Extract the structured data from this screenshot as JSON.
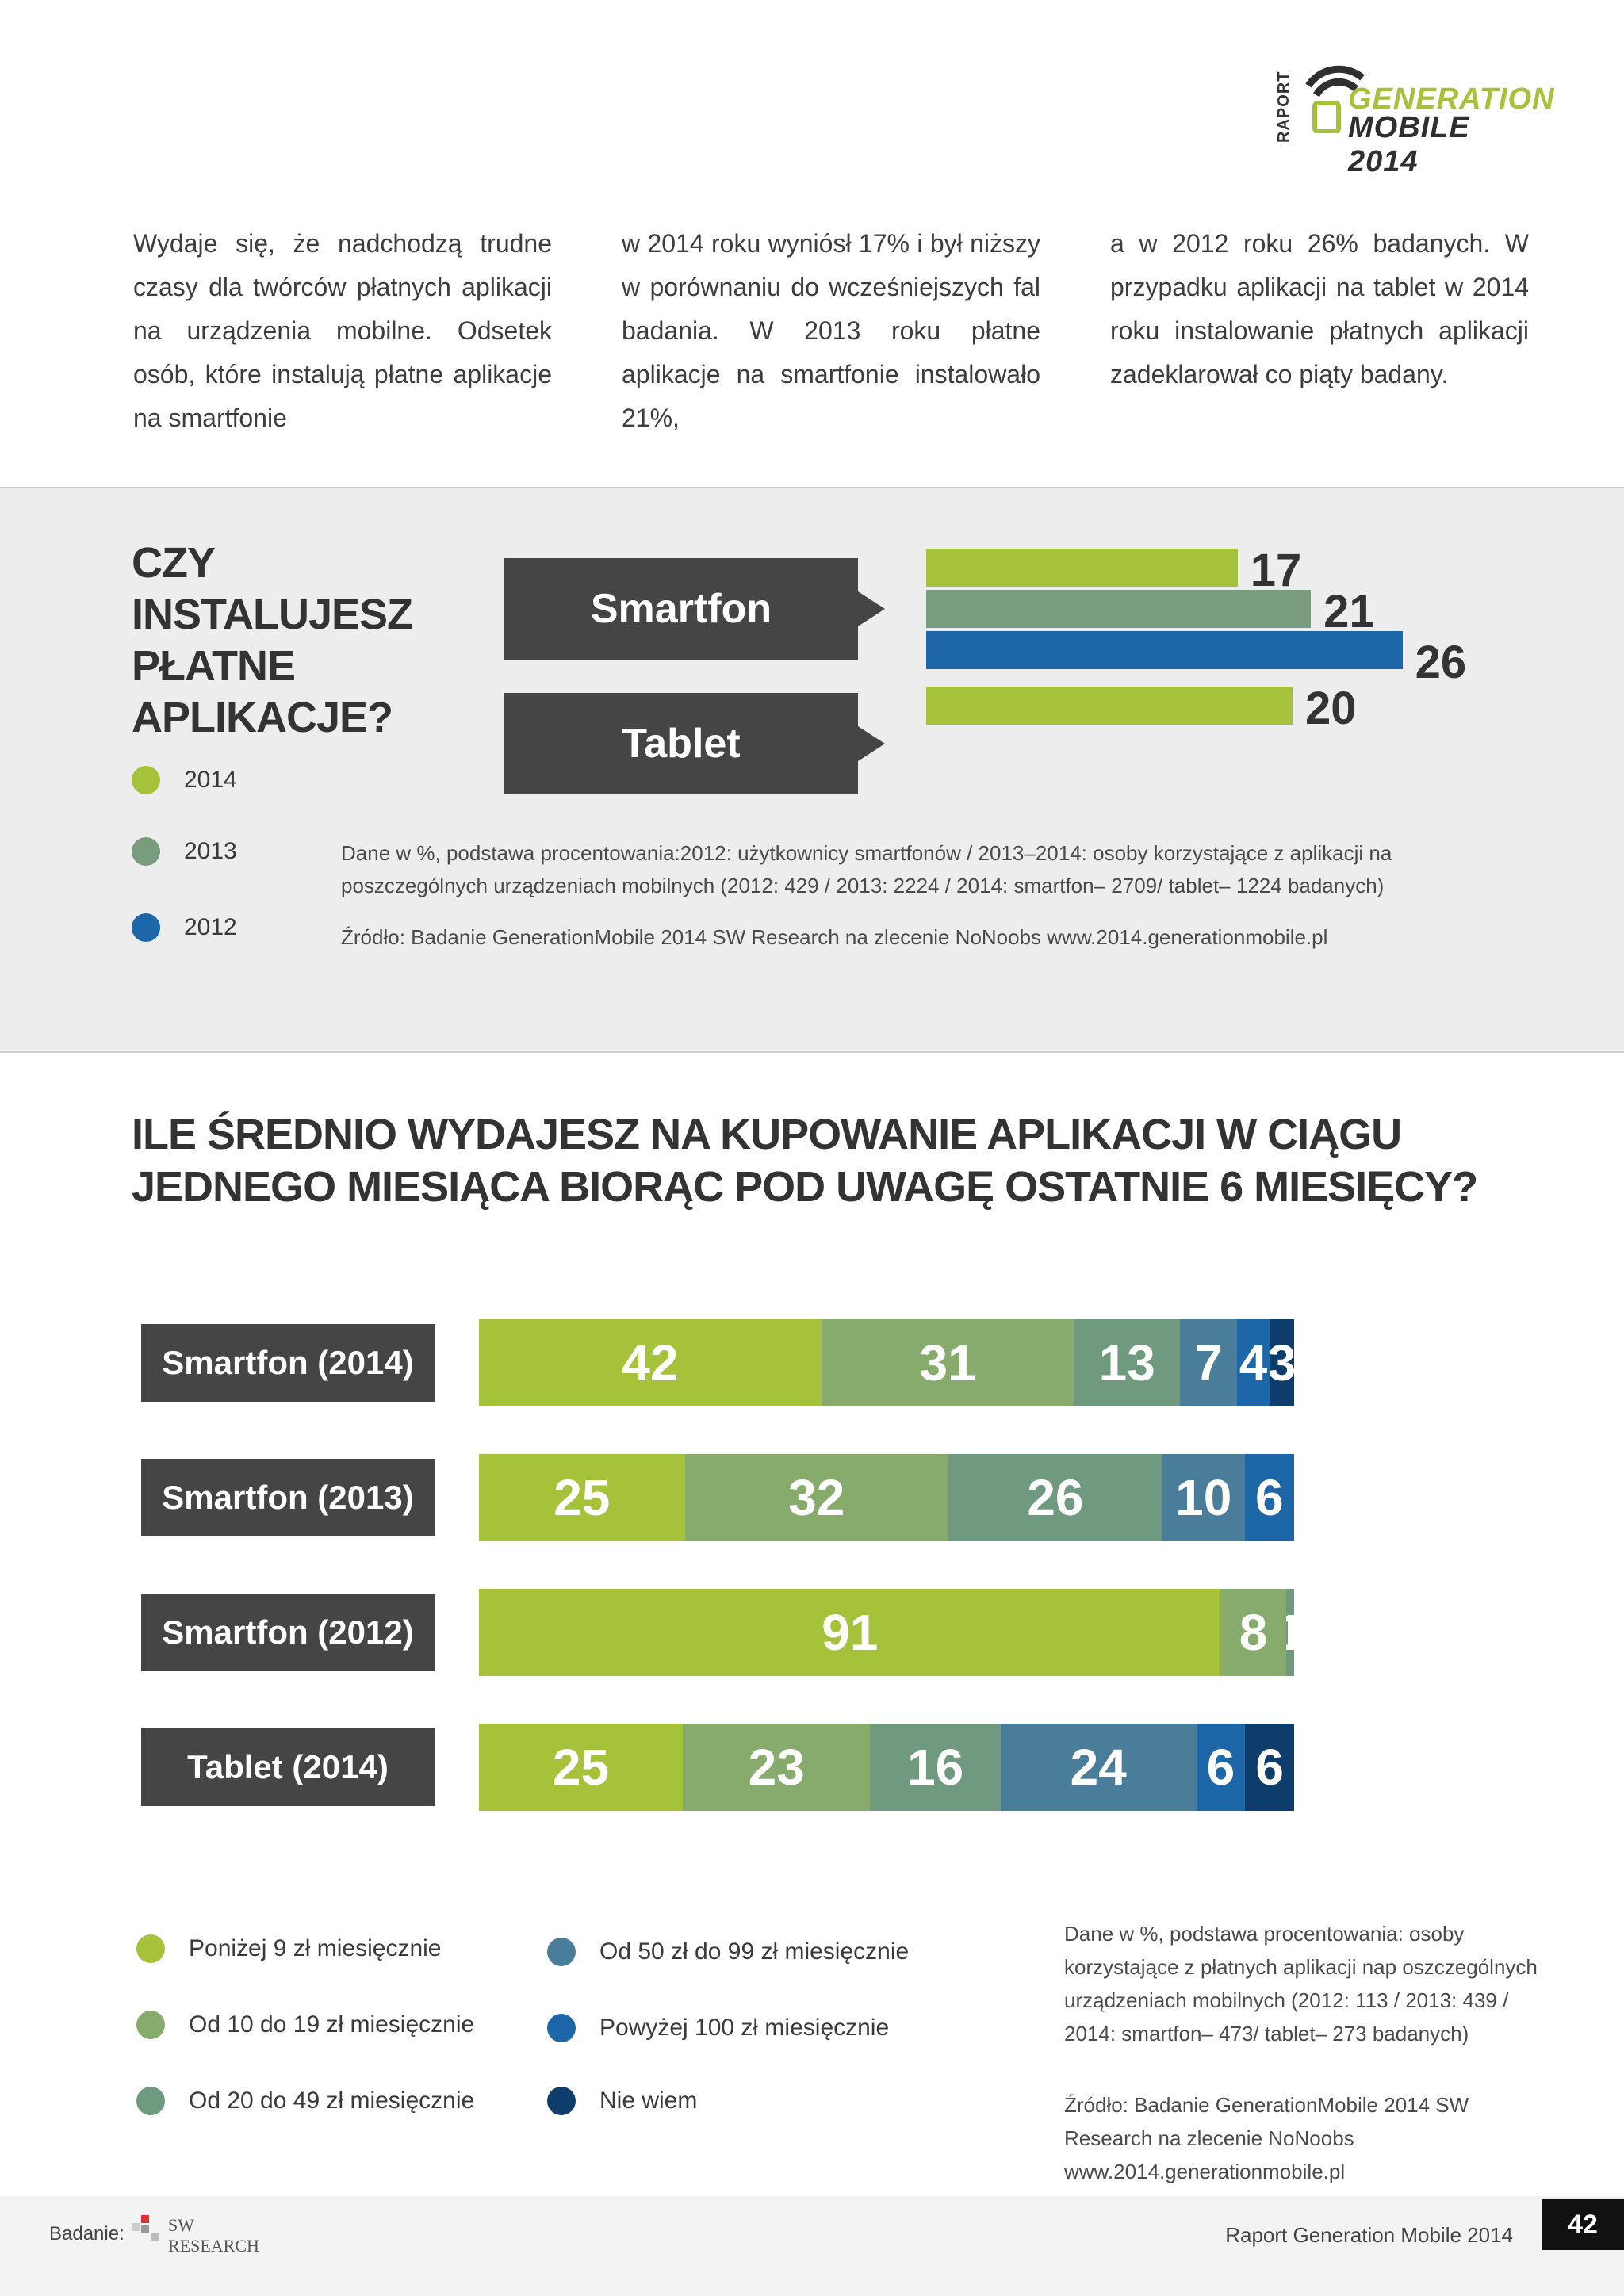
{
  "header": {
    "raport_label": "RAPORT",
    "logo_line1": "GENERATION",
    "logo_line2": "MOBILE 2014"
  },
  "intro": {
    "col1": "Wydaje się, że nadchodzą trudne czasy dla twórców płatnych aplikacji na urządzenia mobilne. Odsetek osób, które instalują płatne aplikacje na smartfonie",
    "col2": "w 2014 roku wyniósł 17% i był niższy w porównaniu do wcześniejszych fal badania. W 2013 roku płatne aplikacje na smartfonie instalowało 21%,",
    "col3": "a w 2012 roku 26% badanych. W przypadku aplikacji na tablet w 2014 roku instalowanie płatnych aplikacji zadeklarował co piąty badany."
  },
  "section1": {
    "question": "CZY\nINSTALUJESZ\nPŁATNE\nAPLIKACJE?",
    "legend": [
      {
        "label": "2014",
        "color": "#a6c13a"
      },
      {
        "label": "2013",
        "color": "#7a9c7e"
      },
      {
        "label": "2012",
        "color": "#1d66a8"
      }
    ],
    "note": "Dane w %, podstawa procentowania:2012: użytkownicy smartfonów / 2013–2014: osoby korzystające z aplikacji na poszczególnych urządzeniach mobilnych (2012: 429 / 2013: 2224 / 2014: smartfon– 2709/ tablet– 1224 badanych)",
    "source": "Źródło: Badanie GenerationMobile 2014 SW Research na zlecenie NoNoobs www.2014.generationmobile.pl"
  },
  "section2": {
    "question": "ILE ŚREDNIO WYDAJESZ NA KUPOWANIE APLIKACJI W CIĄGU JEDNEGO MIESIĄCA BIORĄC POD UWAGĘ OSTATNIE 6 MIESIĘCY?",
    "legend": [
      {
        "label": "Poniżej 9 zł miesięcznie",
        "color": "#a6c13a"
      },
      {
        "label": "Od 10 do 19 zł miesięcznie",
        "color": "#87ab6c"
      },
      {
        "label": "Od 20 do 49 zł miesięcznie",
        "color": "#6f9a80"
      },
      {
        "label": "Od 50 zł do 99 zł miesięcznie",
        "color": "#4a7d99"
      },
      {
        "label": "Powyżej 100 zł miesięcznie",
        "color": "#1d66a8"
      },
      {
        "label": "Nie wiem",
        "color": "#0f3d6b"
      }
    ],
    "note": "Dane w %, podstawa procentowania: osoby korzystające z płatnych aplikacji nap oszczególnych urządzeniach mobilnych (2012: 113 / 2013: 439 / 2014: smartfon– 473/ tablet– 273 badanych)",
    "source": "Źródło: Badanie GenerationMobile 2014 SW Research na zlecenie NoNoobs www.2014.generationmobile.pl"
  },
  "chart_data": [
    {
      "type": "bar",
      "orientation": "horizontal",
      "title": "CZY INSTALUJESZ PŁATNE APLIKACJE?",
      "categories": [
        "Smartfon",
        "Tablet"
      ],
      "series": [
        {
          "name": "2014",
          "values": [
            17,
            20
          ]
        },
        {
          "name": "2013",
          "values": [
            21,
            null
          ]
        },
        {
          "name": "2012",
          "values": [
            26,
            null
          ]
        }
      ],
      "legend_position": "left"
    },
    {
      "type": "bar",
      "orientation": "horizontal",
      "stacked": true,
      "title": "ILE ŚREDNIO WYDAJESZ NA KUPOWANIE APLIKACJI W CIĄGU JEDNEGO MIESIĄCA BIORĄC POD UWAGĘ OSTATNIE 6 MIESIĘCY?",
      "categories": [
        "Smartfon (2014)",
        "Smartfon (2013)",
        "Smartfon (2012)",
        "Tablet (2014)"
      ],
      "series": [
        {
          "name": "Poniżej 9 zł miesięcznie",
          "values": [
            42,
            25,
            91,
            25
          ]
        },
        {
          "name": "Od 10 do 19 zł miesięcznie",
          "values": [
            31,
            32,
            8,
            23
          ]
        },
        {
          "name": "Od 20 do 49 zł miesięcznie",
          "values": [
            13,
            26,
            1,
            16
          ]
        },
        {
          "name": "Od 50 zł do 99 zł miesięcznie",
          "values": [
            7,
            10,
            0,
            24
          ]
        },
        {
          "name": "Powyżej 100 zł miesięcznie",
          "values": [
            4,
            6,
            0,
            6
          ]
        },
        {
          "name": "Nie wiem",
          "values": [
            3,
            0,
            0,
            6
          ]
        }
      ],
      "legend_position": "bottom"
    }
  ],
  "footer": {
    "badanie_label": "Badanie:",
    "sw_logo_text": "SW RESEARCH",
    "report_title": "Raport Generation Mobile 2014",
    "page_number": "42"
  }
}
